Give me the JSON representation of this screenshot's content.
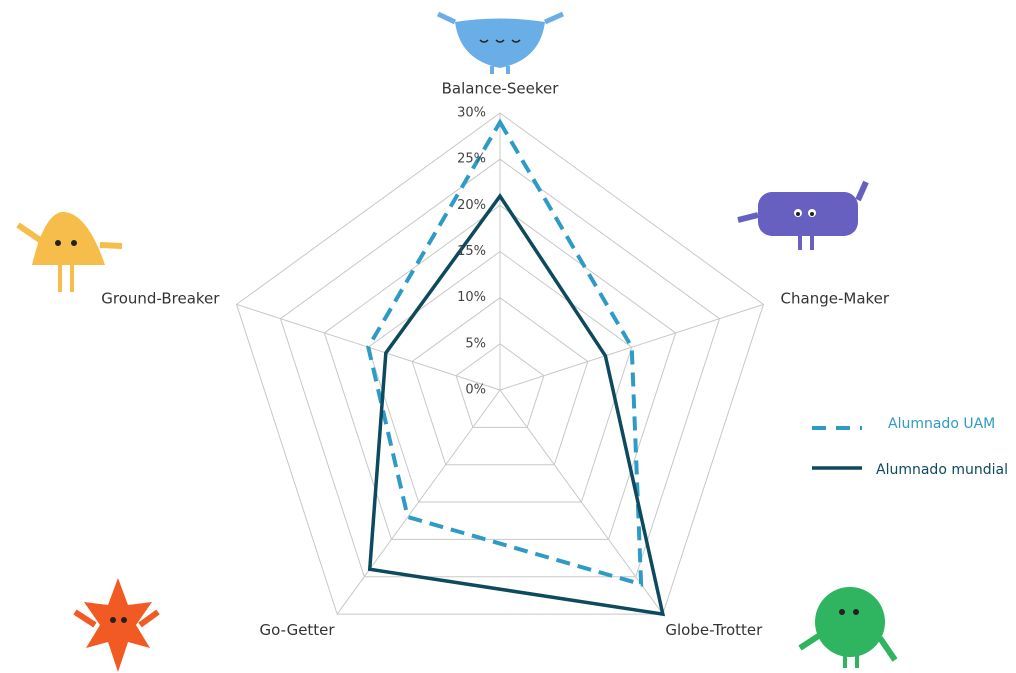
{
  "chart_data": {
    "type": "radar",
    "categories": [
      "Balance-Seeker",
      "Change-Maker",
      "Globe-Trotter",
      "Go-Getter",
      "Ground-Breaker"
    ],
    "series": [
      {
        "name": "Alumnado UAM",
        "color": "#2e9bc6",
        "dashed": true,
        "values": [
          29,
          15,
          26,
          17,
          15
        ]
      },
      {
        "name": "Alumnado mundial",
        "color": "#0d4a5e",
        "dashed": false,
        "values": [
          21,
          12,
          30,
          24,
          13
        ]
      }
    ],
    "ylim": [
      0,
      30
    ],
    "yticks": [
      {
        "value": 0,
        "label": "0%"
      },
      {
        "value": 5,
        "label": "5%"
      },
      {
        "value": 10,
        "label": "10%"
      },
      {
        "value": 15,
        "label": "15%"
      },
      {
        "value": 20,
        "label": "20%"
      },
      {
        "value": 25,
        "label": "25%"
      },
      {
        "value": 30,
        "label": "30%"
      }
    ],
    "grid": true
  }
}
